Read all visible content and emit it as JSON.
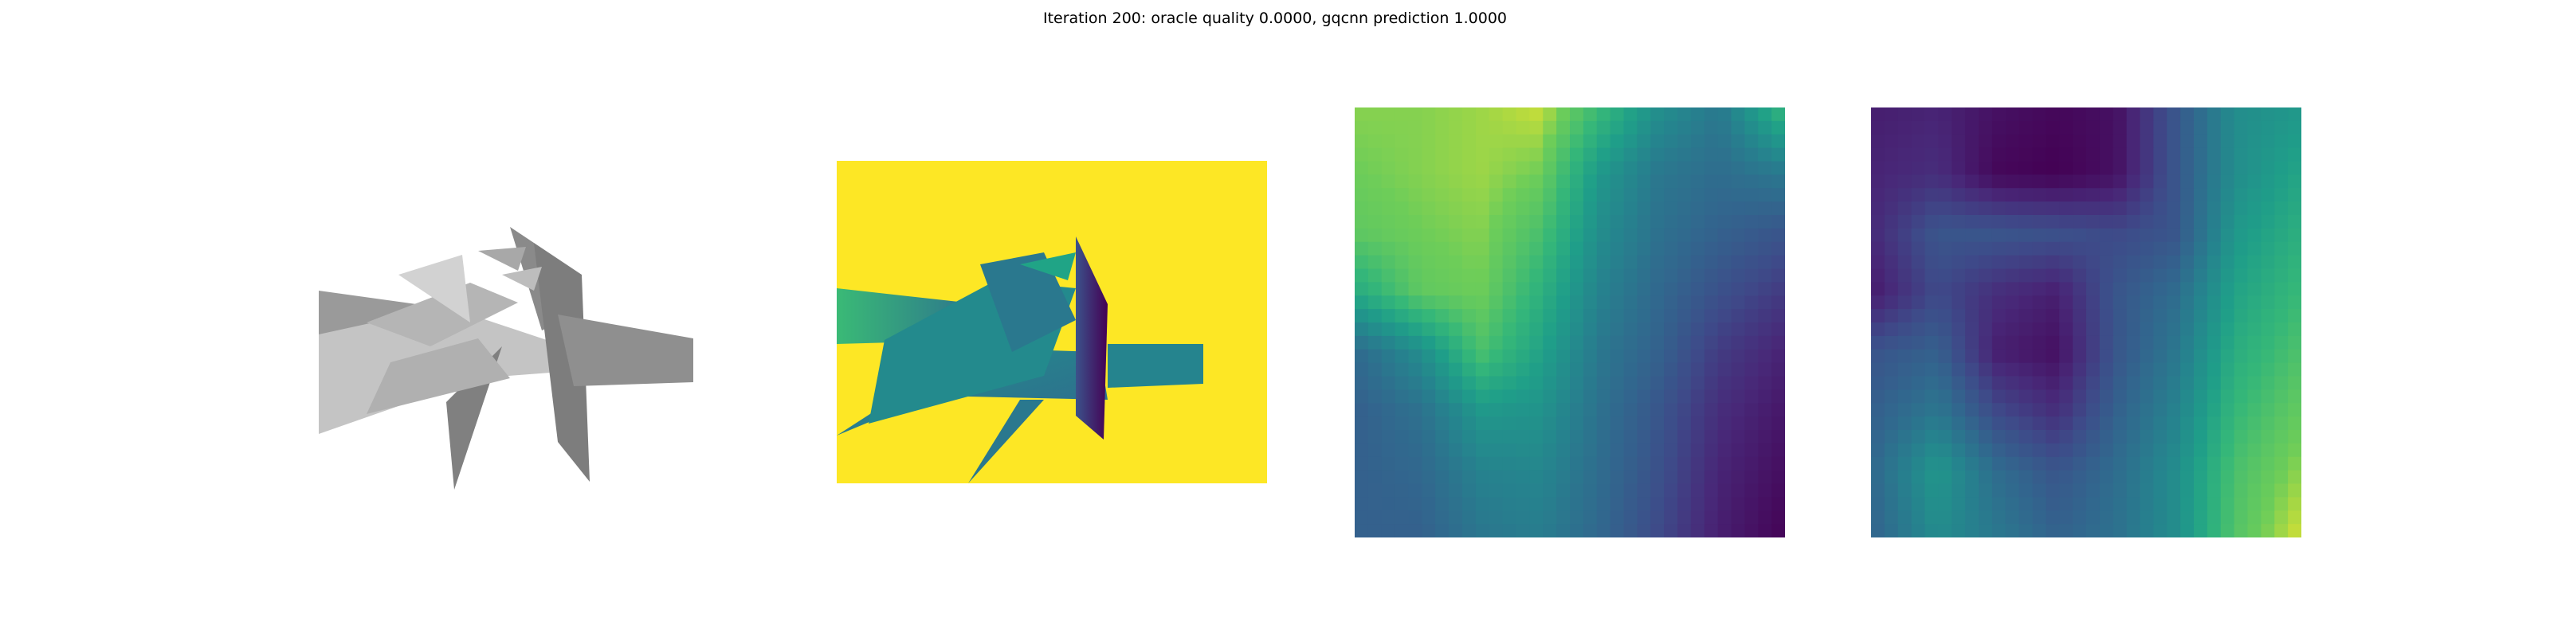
{
  "figure": {
    "title": "Iteration 200: oracle quality 0.0000, gqcnn prediction 1.0000"
  },
  "colors": {
    "background": "#ffffff",
    "mesh_light": "#c8c8c8",
    "mesh_dark": "#7a7a7a",
    "depth_background": "#fde725",
    "viridis_low": "#440154",
    "viridis_high": "#fde725"
  },
  "chart_data": [
    {
      "type": "image",
      "description": "rendered grayscale mesh of object",
      "axes_visible": false
    },
    {
      "type": "image",
      "colormap": "viridis",
      "description": "depth image of object on yellow background",
      "axes_visible": false
    },
    {
      "type": "heatmap",
      "colormap": "viridis",
      "rows": 8,
      "cols": 8,
      "axes_visible": false,
      "values": [
        [
          0.9,
          0.9,
          0.92,
          0.95,
          0.75,
          0.55,
          0.45,
          0.7
        ],
        [
          0.88,
          0.9,
          0.92,
          0.88,
          0.6,
          0.45,
          0.4,
          0.45
        ],
        [
          0.85,
          0.88,
          0.9,
          0.8,
          0.55,
          0.42,
          0.35,
          0.3
        ],
        [
          0.7,
          0.85,
          0.88,
          0.72,
          0.5,
          0.38,
          0.28,
          0.2
        ],
        [
          0.4,
          0.55,
          0.8,
          0.65,
          0.45,
          0.35,
          0.2,
          0.12
        ],
        [
          0.35,
          0.42,
          0.6,
          0.58,
          0.42,
          0.3,
          0.15,
          0.08
        ],
        [
          0.35,
          0.38,
          0.5,
          0.52,
          0.4,
          0.28,
          0.12,
          0.05
        ],
        [
          0.35,
          0.35,
          0.45,
          0.48,
          0.38,
          0.25,
          0.1,
          0.02
        ]
      ]
    },
    {
      "type": "heatmap",
      "colormap": "viridis",
      "rows": 8,
      "cols": 8,
      "axes_visible": false,
      "values": [
        [
          0.1,
          0.12,
          0.05,
          0.02,
          0.05,
          0.3,
          0.55,
          0.6
        ],
        [
          0.12,
          0.15,
          0.02,
          0.0,
          0.05,
          0.3,
          0.55,
          0.65
        ],
        [
          0.15,
          0.3,
          0.3,
          0.28,
          0.25,
          0.3,
          0.6,
          0.7
        ],
        [
          0.1,
          0.25,
          0.15,
          0.1,
          0.3,
          0.4,
          0.65,
          0.75
        ],
        [
          0.3,
          0.35,
          0.1,
          0.05,
          0.3,
          0.45,
          0.7,
          0.8
        ],
        [
          0.35,
          0.45,
          0.25,
          0.15,
          0.35,
          0.5,
          0.75,
          0.85
        ],
        [
          0.4,
          0.6,
          0.4,
          0.3,
          0.4,
          0.55,
          0.8,
          0.9
        ],
        [
          0.38,
          0.55,
          0.45,
          0.35,
          0.42,
          0.55,
          0.82,
          0.95
        ]
      ]
    }
  ]
}
